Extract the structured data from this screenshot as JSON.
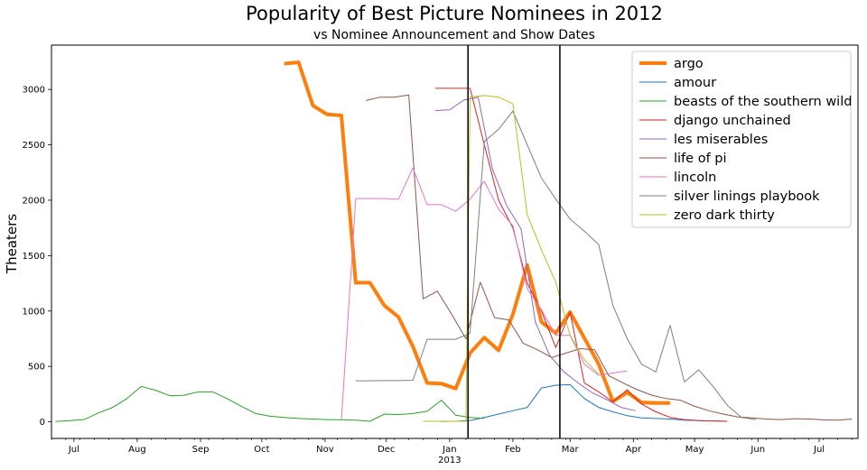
{
  "chart_data": {
    "type": "line",
    "title": "Popularity of Best Picture Nominees in 2012",
    "subtitle": "vs Nominee Announcement and Show Dates",
    "xlabel": "",
    "ylabel": "Theaters",
    "xlim": [
      "2012-06-20",
      "2013-07-20"
    ],
    "ylim": [
      -150,
      3400
    ],
    "yticks": [
      0,
      500,
      1000,
      1500,
      2000,
      2500,
      3000
    ],
    "xticks": [
      {
        "date": "2012-07-01",
        "label": "Jul"
      },
      {
        "date": "2012-08-01",
        "label": "Aug"
      },
      {
        "date": "2012-09-01",
        "label": "Sep"
      },
      {
        "date": "2012-10-01",
        "label": "Oct"
      },
      {
        "date": "2012-11-01",
        "label": "Nov"
      },
      {
        "date": "2012-12-01",
        "label": "Dec"
      },
      {
        "date": "2013-01-01",
        "label": "Jan"
      },
      {
        "date": "2013-02-01",
        "label": "Feb"
      },
      {
        "date": "2013-03-01",
        "label": "Mar"
      },
      {
        "date": "2013-04-01",
        "label": "Apr"
      },
      {
        "date": "2013-05-01",
        "label": "May"
      },
      {
        "date": "2013-06-01",
        "label": "Jun"
      },
      {
        "date": "2013-07-01",
        "label": "Jul"
      }
    ],
    "year_label": {
      "date": "2013-01-01",
      "label": "2013"
    },
    "vlines": [
      "2013-01-10",
      "2013-02-24"
    ],
    "grid": false,
    "legend_position": "top-right",
    "series": [
      {
        "name": "argo",
        "color": "#ff7f0e",
        "width": 4,
        "x": [
          "2012-10-12",
          "2012-10-19",
          "2012-10-26",
          "2012-11-02",
          "2012-11-09",
          "2012-11-16",
          "2012-11-23",
          "2012-11-30",
          "2012-12-07",
          "2012-12-14",
          "2012-12-21",
          "2012-12-28",
          "2013-01-04",
          "2013-01-11",
          "2013-01-18",
          "2013-01-25",
          "2013-02-01",
          "2013-02-08",
          "2013-02-15",
          "2013-02-22",
          "2013-03-01",
          "2013-03-08",
          "2013-03-15",
          "2013-03-22",
          "2013-03-29",
          "2013-04-05",
          "2013-04-12",
          "2013-04-19"
        ],
        "y": [
          3232,
          3245,
          2855,
          2775,
          2765,
          1255,
          1255,
          1050,
          945,
          680,
          350,
          345,
          300,
          620,
          760,
          645,
          970,
          1415,
          900,
          800,
          990,
          755,
          520,
          185,
          265,
          175,
          170,
          170
        ]
      },
      {
        "name": "amour",
        "color": "#1f77b4",
        "width": 1,
        "x": [
          "2012-12-28",
          "2013-01-04",
          "2013-01-11",
          "2013-01-18",
          "2013-01-25",
          "2013-02-01",
          "2013-02-08",
          "2013-02-15",
          "2013-02-22",
          "2013-03-01",
          "2013-03-08",
          "2013-03-15",
          "2013-03-22",
          "2013-03-29",
          "2013-04-05",
          "2013-04-12",
          "2013-04-19",
          "2013-04-26",
          "2013-05-03",
          "2013-05-10",
          "2013-05-17"
        ],
        "y": [
          3,
          5,
          12,
          40,
          70,
          100,
          130,
          305,
          330,
          335,
          210,
          130,
          90,
          55,
          35,
          30,
          25,
          15,
          10,
          8,
          5
        ]
      },
      {
        "name": "beasts of the southern wild",
        "color": "#2ca02c",
        "width": 1,
        "x": [
          "2012-06-22",
          "2012-06-29",
          "2012-07-06",
          "2012-07-13",
          "2012-07-20",
          "2012-07-27",
          "2012-08-03",
          "2012-08-10",
          "2012-08-17",
          "2012-08-24",
          "2012-08-31",
          "2012-09-07",
          "2012-09-14",
          "2012-09-21",
          "2012-09-28",
          "2012-10-05",
          "2012-10-12",
          "2012-10-19",
          "2012-10-26",
          "2012-11-02",
          "2012-11-09",
          "2012-11-16",
          "2012-11-23",
          "2012-11-30",
          "2012-12-07",
          "2012-12-14",
          "2012-12-21",
          "2012-12-28",
          "2013-01-04",
          "2013-01-11",
          "2013-01-18"
        ],
        "y": [
          4,
          10,
          20,
          80,
          130,
          210,
          320,
          285,
          235,
          240,
          270,
          270,
          210,
          140,
          75,
          50,
          40,
          30,
          25,
          20,
          18,
          15,
          5,
          70,
          65,
          75,
          95,
          195,
          60,
          40,
          30
        ]
      },
      {
        "name": "django unchained",
        "color": "#d62728",
        "width": 1,
        "x": [
          "2012-12-25",
          "2013-01-04",
          "2013-01-11",
          "2013-01-18",
          "2013-01-25",
          "2013-02-01",
          "2013-02-08",
          "2013-02-15",
          "2013-02-22",
          "2013-03-01",
          "2013-03-08",
          "2013-03-15",
          "2013-03-22",
          "2013-03-29",
          "2013-04-05",
          "2013-04-12",
          "2013-04-19",
          "2013-04-26",
          "2013-05-03",
          "2013-05-10",
          "2013-05-17"
        ],
        "y": [
          3010,
          3010,
          3010,
          2500,
          2000,
          1750,
          1250,
          1000,
          670,
          990,
          350,
          270,
          180,
          290,
          160,
          90,
          40,
          20,
          10,
          8,
          5
        ]
      },
      {
        "name": "les miserables",
        "color": "#9467bd",
        "width": 1,
        "x": [
          "2012-12-25",
          "2013-01-01",
          "2013-01-08",
          "2013-01-15",
          "2013-01-22",
          "2013-01-29",
          "2013-02-05",
          "2013-02-12",
          "2013-02-19",
          "2013-02-26",
          "2013-03-05",
          "2013-03-12",
          "2013-03-19",
          "2013-03-26",
          "2013-04-02"
        ],
        "y": [
          2810,
          2815,
          2905,
          2930,
          2280,
          1950,
          1740,
          900,
          600,
          450,
          350,
          260,
          200,
          130,
          100
        ]
      },
      {
        "name": "life of pi",
        "color": "#8c564b",
        "width": 1,
        "x": [
          "2012-11-21",
          "2012-11-28",
          "2012-12-05",
          "2012-12-12",
          "2012-12-19",
          "2012-12-26",
          "2013-01-02",
          "2013-01-09",
          "2013-01-16",
          "2013-01-23",
          "2013-01-30",
          "2013-02-06",
          "2013-02-13",
          "2013-02-20",
          "2013-02-27",
          "2013-03-06",
          "2013-03-13",
          "2013-03-20",
          "2013-03-27",
          "2013-04-03",
          "2013-04-10",
          "2013-04-17",
          "2013-04-24",
          "2013-05-01",
          "2013-05-08",
          "2013-05-15",
          "2013-05-22",
          "2013-05-29",
          "2013-06-05",
          "2013-06-12",
          "2013-06-19",
          "2013-06-26",
          "2013-07-03",
          "2013-07-10",
          "2013-07-17"
        ],
        "y": [
          2900,
          2930,
          2930,
          2950,
          1110,
          1180,
          970,
          750,
          1260,
          940,
          920,
          710,
          650,
          580,
          620,
          660,
          650,
          415,
          350,
          290,
          240,
          210,
          195,
          140,
          100,
          70,
          45,
          35,
          25,
          20,
          28,
          25,
          18,
          15,
          25
        ]
      },
      {
        "name": "lincoln",
        "color": "#e377c2",
        "width": 1,
        "x": [
          "2012-11-09",
          "2012-11-16",
          "2012-11-23",
          "2012-11-30",
          "2012-12-07",
          "2012-12-14",
          "2012-12-21",
          "2012-12-28",
          "2013-01-04",
          "2013-01-11",
          "2013-01-18",
          "2013-01-25",
          "2013-02-01",
          "2013-02-08",
          "2013-02-15",
          "2013-02-22",
          "2013-03-01",
          "2013-03-08",
          "2013-03-15",
          "2013-03-22",
          "2013-03-29"
        ],
        "y": [
          15,
          2015,
          2015,
          2015,
          2010,
          2290,
          1960,
          1960,
          1900,
          2010,
          2170,
          1920,
          1770,
          1200,
          1010,
          780,
          780,
          520,
          420,
          440,
          460
        ]
      },
      {
        "name": "silver linings playbook",
        "color": "#7f7f7f",
        "width": 1,
        "x": [
          "2012-11-16",
          "2012-11-23",
          "2012-11-30",
          "2012-12-07",
          "2012-12-14",
          "2012-12-21",
          "2012-12-28",
          "2013-01-04",
          "2013-01-11",
          "2013-01-18",
          "2013-01-25",
          "2013-02-01",
          "2013-02-08",
          "2013-02-15",
          "2013-02-22",
          "2013-03-01",
          "2013-03-08",
          "2013-03-15",
          "2013-03-22",
          "2013-03-29",
          "2013-04-05",
          "2013-04-12",
          "2013-04-19",
          "2013-04-26",
          "2013-05-03",
          "2013-05-10",
          "2013-05-17",
          "2013-05-24",
          "2013-05-31"
        ],
        "y": [
          370,
          370,
          372,
          372,
          375,
          745,
          745,
          745,
          800,
          2530,
          2640,
          2805,
          2500,
          2200,
          2010,
          1830,
          1720,
          1600,
          1050,
          750,
          520,
          450,
          870,
          360,
          470,
          320,
          150,
          40,
          20
        ]
      },
      {
        "name": "zero dark thirty",
        "color": "#bcbd22",
        "width": 1,
        "x": [
          "2012-12-19",
          "2012-12-26",
          "2013-01-02",
          "2013-01-09",
          "2013-01-11",
          "2013-01-18",
          "2013-01-25",
          "2013-02-01",
          "2013-02-08",
          "2013-02-15",
          "2013-02-22",
          "2013-03-01",
          "2013-03-08",
          "2013-03-15"
        ],
        "y": [
          5,
          5,
          5,
          5,
          2930,
          2945,
          2930,
          2870,
          1870,
          1550,
          1260,
          780,
          560,
          430
        ]
      }
    ]
  }
}
